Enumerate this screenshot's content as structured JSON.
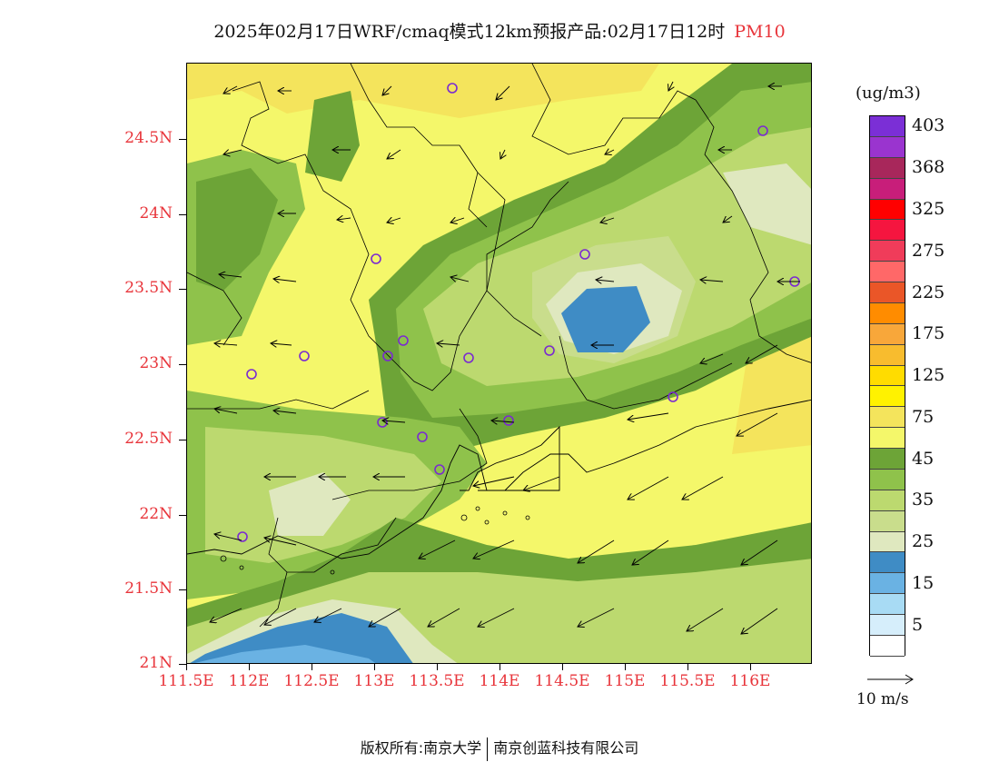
{
  "title": {
    "main": "2025年02月17日WRF/cmaq模式12km预报产品:02月17日12时",
    "pollutant": "PM10"
  },
  "map": {
    "lat_labels": [
      "24.5N",
      "24N",
      "23.5N",
      "23N",
      "22.5N",
      "22N",
      "21.5N",
      "21N"
    ],
    "lon_labels": [
      "111.5E",
      "112E",
      "112.5E",
      "113E",
      "113.5E",
      "114E",
      "114.5E",
      "115E",
      "115.5E",
      "116E"
    ],
    "lat_range": [
      21.0,
      25.0
    ],
    "lon_range": [
      111.5,
      116.5
    ]
  },
  "legend": {
    "unit": "(ug/m3)",
    "levels": [
      {
        "label": "403",
        "color": "#7b2fd6"
      },
      {
        "label": "",
        "color": "#9a34cf"
      },
      {
        "label": "368",
        "color": "#a8275b"
      },
      {
        "label": "",
        "color": "#c81e7a"
      },
      {
        "label": "325",
        "color": "#ff0000"
      },
      {
        "label": "",
        "color": "#f5153f"
      },
      {
        "label": "275",
        "color": "#f03c5a"
      },
      {
        "label": "",
        "color": "#ff6868"
      },
      {
        "label": "225",
        "color": "#ea5628"
      },
      {
        "label": "",
        "color": "#ff8c00"
      },
      {
        "label": "175",
        "color": "#f8a73a"
      },
      {
        "label": "",
        "color": "#f8bc2e"
      },
      {
        "label": "125",
        "color": "#ffdc00"
      },
      {
        "label": "",
        "color": "#fff200"
      },
      {
        "label": "75",
        "color": "#f4e45c"
      },
      {
        "label": "",
        "color": "#f4f76a"
      },
      {
        "label": "45",
        "color": "#6da437"
      },
      {
        "label": "",
        "color": "#8fc24b"
      },
      {
        "label": "35",
        "color": "#bcd96f"
      },
      {
        "label": "",
        "color": "#c9dd8c"
      },
      {
        "label": "25",
        "color": "#dfe8bf"
      },
      {
        "label": "",
        "color": "#3f8cc5"
      },
      {
        "label": "15",
        "color": "#6ab2e3"
      },
      {
        "label": "",
        "color": "#a8dbf4"
      },
      {
        "label": "5",
        "color": "#d6eefb"
      },
      {
        "label": "",
        "color": "#ffffff"
      }
    ],
    "reference_vector": "10 m/s"
  },
  "stations_color": "#7a2ad1",
  "footer": {
    "left": "版权所有:南京大学",
    "right": "南京创蓝科技有限公司"
  }
}
